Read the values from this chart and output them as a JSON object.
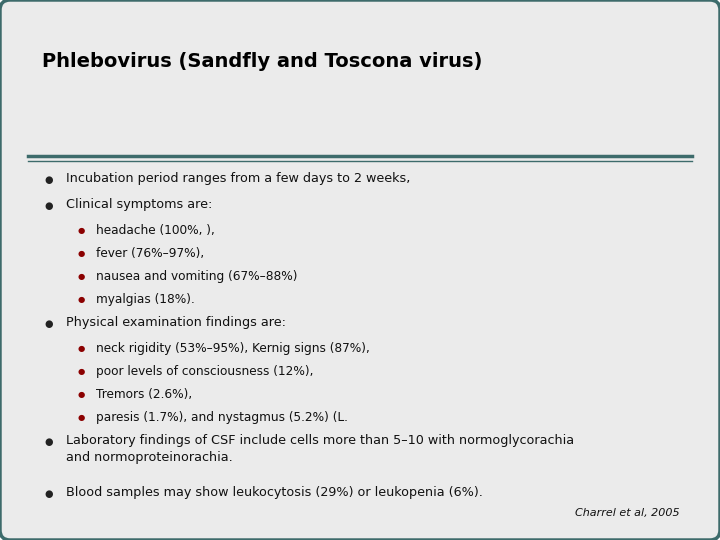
{
  "title": "Phlebovirus (Sandfly and Toscona virus)",
  "title_fontsize": 14,
  "title_color": "#000000",
  "background_color": "#ebebeb",
  "outer_bg": "#ffffff",
  "border_color": "#3d6b6b",
  "separator_color": "#3d6b6b",
  "bullet_color_main": "#222222",
  "bullet_color_sub": "#8b0000",
  "text_color": "#111111",
  "text_fontsize": 9.2,
  "citation": "Charrel et al, 2005",
  "citation_fontsize": 8,
  "content": [
    {
      "level": 1,
      "text": "Incubation period ranges from a few days to 2 weeks,"
    },
    {
      "level": 1,
      "text": "Clinical symptoms are:"
    },
    {
      "level": 2,
      "text": "headache (100%, ),"
    },
    {
      "level": 2,
      "text": "fever (76%–97%),"
    },
    {
      "level": 2,
      "text": "nausea and vomiting (67%–88%)"
    },
    {
      "level": 2,
      "text": "myalgias (18%)."
    },
    {
      "level": 1,
      "text": "Physical examination findings are:"
    },
    {
      "level": 2,
      "text": "neck rigidity (53%–95%), Kernig signs (87%),"
    },
    {
      "level": 2,
      "text": "poor levels of consciousness (12%),"
    },
    {
      "level": 2,
      "text": "Tremors (2.6%),"
    },
    {
      "level": 2,
      "text": "paresis (1.7%), and nystagmus (5.2%) (L."
    },
    {
      "level": 1,
      "text": "Laboratory findings of CSF include cells more than 5–10 with normoglycorachia\nand normoproteinorachia."
    },
    {
      "level": 1,
      "text": "Blood samples may show leukocytosis (29%) or leukopenia (6%)."
    }
  ]
}
